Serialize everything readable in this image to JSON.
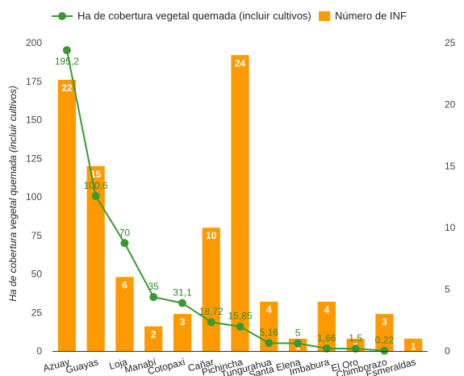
{
  "chart_data": {
    "type": "bar",
    "categories": [
      "Azuay",
      "Guayas",
      "Loja",
      "Manabí",
      "Cotopaxi",
      "Cañar",
      "Pichincha",
      "Tungurahua",
      "Santa Elena",
      "Imbabura",
      "El Oro",
      "Chimborazo",
      "Esmeraldas"
    ],
    "series": [
      {
        "name": "Número de INF",
        "type": "bar",
        "axis": "right",
        "color": "#ff9900",
        "values": [
          22,
          15,
          6,
          2,
          3,
          10,
          24,
          4,
          1,
          4,
          1,
          3,
          1
        ],
        "labels": [
          "22",
          "15",
          "6",
          "2",
          "3",
          "10",
          "24",
          "4",
          "1",
          "4",
          "1",
          "3",
          "1"
        ]
      },
      {
        "name": "Ha de cobertura vegetal quemada (incluir cultivos)",
        "type": "line",
        "axis": "left",
        "color": "#3a9a31",
        "values": [
          195.2,
          100.6,
          70,
          35,
          31.1,
          18.72,
          15.85,
          5.16,
          5,
          1.66,
          1.5,
          0.22,
          null
        ],
        "labels": [
          "195,2",
          "100,6",
          "70",
          "35",
          "31,1",
          "18,72",
          "15,85",
          "5,16",
          "5",
          "1,66",
          "1,5",
          "0,22",
          ""
        ]
      }
    ],
    "ylabel": "Ha de cobertura vegetal quemada (incluir cultivos)",
    "ylim": [
      0,
      200
    ],
    "yticks": [
      "0",
      "25",
      "50",
      "75",
      "100",
      "125",
      "150",
      "175",
      "200"
    ],
    "y2lim": [
      0,
      25
    ],
    "y2ticks": [
      "0",
      "5",
      "10",
      "15",
      "20",
      "25"
    ],
    "legend_position": "top",
    "grid": false
  }
}
